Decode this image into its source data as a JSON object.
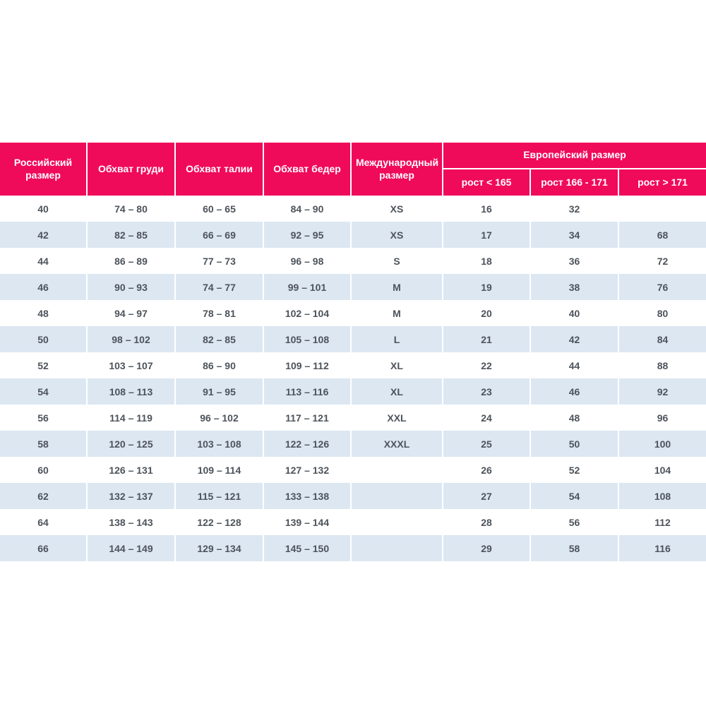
{
  "colors": {
    "accent": "#F00A5A",
    "row_alt": "#DCE7F2",
    "header_text": "#FFFFFF",
    "body_text": "#4D535B",
    "page_background": "#FFFFFF"
  },
  "chart_data": {
    "type": "table",
    "title": "",
    "headers": {
      "russian_size": "Российский размер",
      "chest": "Обхват груди",
      "waist": "Обхват талии",
      "hips": "Обхват бедер",
      "international_size": "Международный размер",
      "european_size_group": "Европейский размер",
      "height_lt_165": "рост < 165",
      "height_166_171": "рост 166 - 171",
      "height_gt_171": "рост > 171"
    },
    "columns": [
      "Российский размер",
      "Обхват груди",
      "Обхват талии",
      "Обхват бедер",
      "Международный размер",
      "рост < 165",
      "рост 166 - 171",
      "рост > 171"
    ],
    "rows": [
      [
        "40",
        "74 – 80",
        "60 – 65",
        "84 – 90",
        "XS",
        "16",
        "32",
        ""
      ],
      [
        "42",
        "82 – 85",
        "66 – 69",
        "92 – 95",
        "XS",
        "17",
        "34",
        "68"
      ],
      [
        "44",
        "86 – 89",
        "77 – 73",
        "96 – 98",
        "S",
        "18",
        "36",
        "72"
      ],
      [
        "46",
        "90 – 93",
        "74 – 77",
        "99 – 101",
        "M",
        "19",
        "38",
        "76"
      ],
      [
        "48",
        "94 – 97",
        "78 – 81",
        "102 – 104",
        "M",
        "20",
        "40",
        "80"
      ],
      [
        "50",
        "98 – 102",
        "82 – 85",
        "105 – 108",
        "L",
        "21",
        "42",
        "84"
      ],
      [
        "52",
        "103 – 107",
        "86 – 90",
        "109 – 112",
        "XL",
        "22",
        "44",
        "88"
      ],
      [
        "54",
        "108 – 113",
        "91 – 95",
        "113 – 116",
        "XL",
        "23",
        "46",
        "92"
      ],
      [
        "56",
        "114 – 119",
        "96 – 102",
        "117 – 121",
        "XXL",
        "24",
        "48",
        "96"
      ],
      [
        "58",
        "120 – 125",
        "103 – 108",
        "122 – 126",
        "XXXL",
        "25",
        "50",
        "100"
      ],
      [
        "60",
        "126 – 131",
        "109 – 114",
        "127 – 132",
        "",
        "26",
        "52",
        "104"
      ],
      [
        "62",
        "132 – 137",
        "115 – 121",
        "133 – 138",
        "",
        "27",
        "54",
        "108"
      ],
      [
        "64",
        "138 – 143",
        "122 – 128",
        "139 – 144",
        "",
        "28",
        "56",
        "112"
      ],
      [
        "66",
        "144 – 149",
        "129 – 134",
        "145 – 150",
        "",
        "29",
        "58",
        "116"
      ]
    ]
  }
}
